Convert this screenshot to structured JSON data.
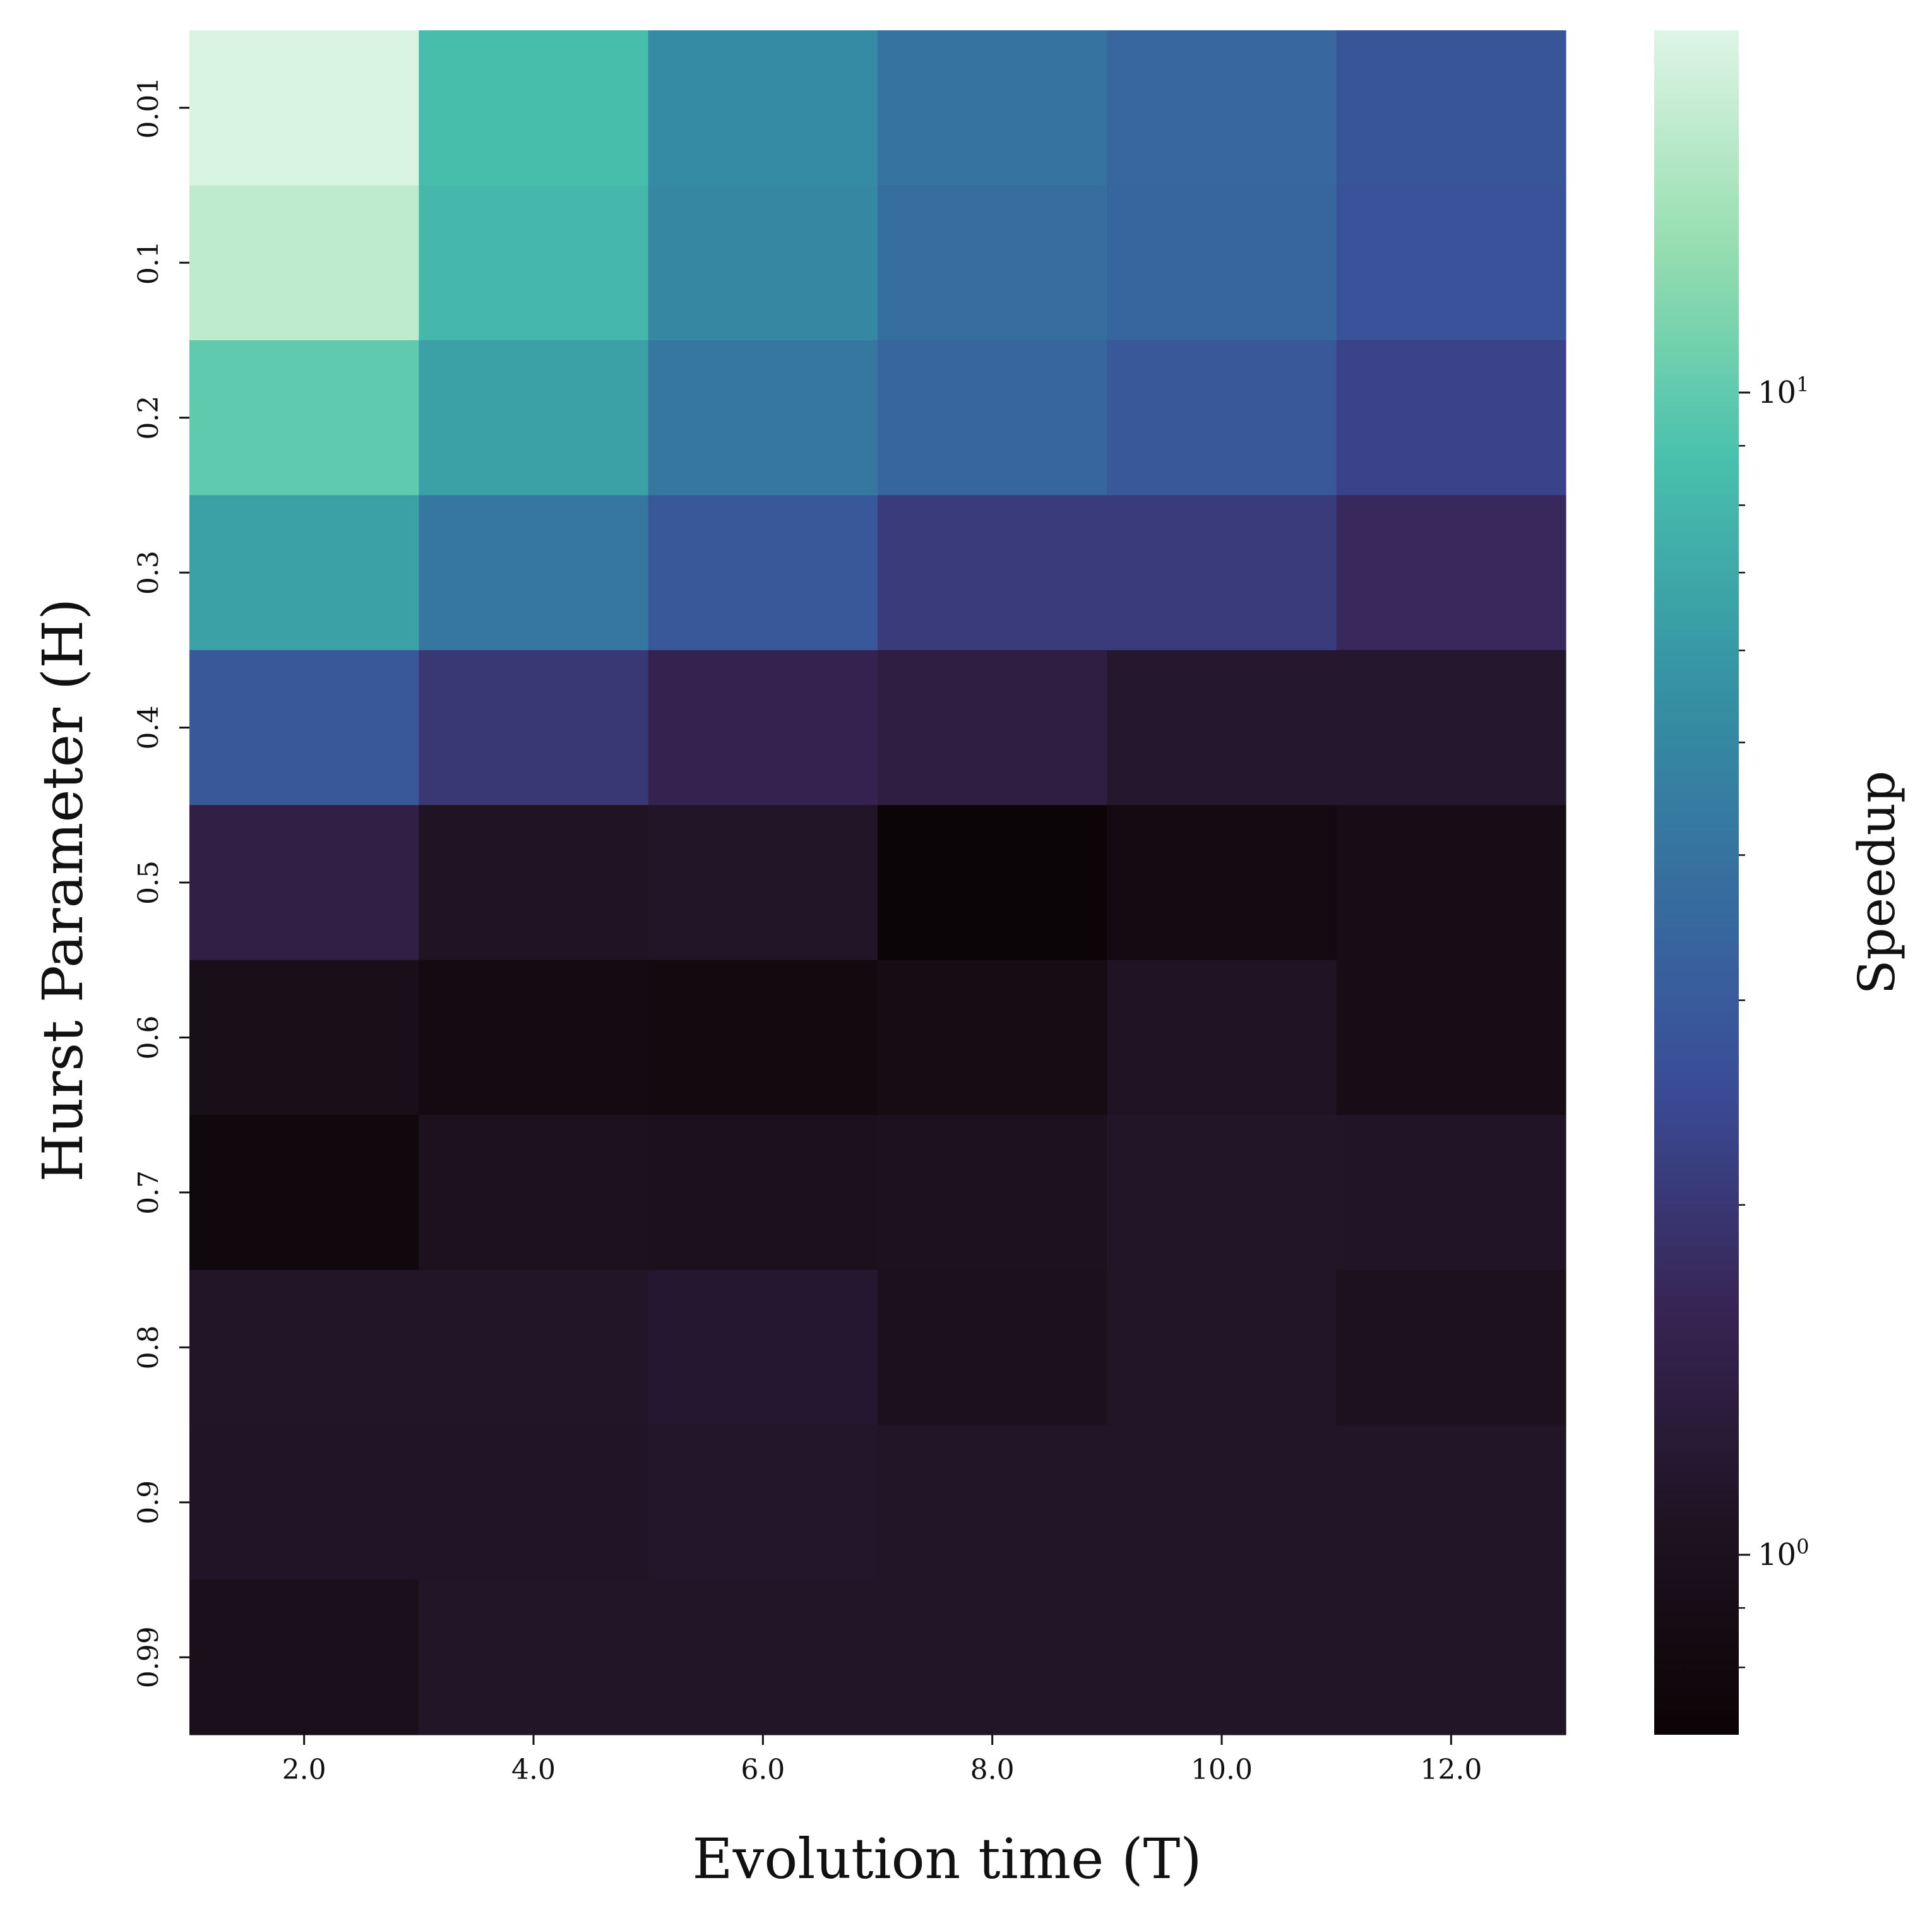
{
  "chart_data": {
    "type": "heatmap",
    "title": "",
    "xlabel": "Evolution time (T)",
    "ylabel": "Hurst Parameter (H)",
    "x_categories": [
      "2.0",
      "4.0",
      "6.0",
      "8.0",
      "10.0",
      "12.0"
    ],
    "y_categories": [
      "0.01",
      "0.1",
      "0.2",
      "0.3",
      "0.4",
      "0.5",
      "0.6",
      "0.7",
      "0.8",
      "0.9",
      "0.99"
    ],
    "values": [
      [
        20.0,
        8.5,
        5.2,
        4.0,
        3.5,
        2.8
      ],
      [
        17.0,
        8.0,
        5.0,
        3.8,
        3.4,
        2.7
      ],
      [
        10.0,
        6.5,
        4.2,
        3.4,
        2.9,
        2.3
      ],
      [
        6.5,
        4.2,
        2.9,
        2.1,
        2.1,
        1.7
      ],
      [
        2.9,
        2.0,
        1.55,
        1.4,
        1.18,
        1.18
      ],
      [
        1.45,
        1.08,
        1.12,
        0.72,
        0.85,
        0.9
      ],
      [
        0.95,
        0.85,
        0.83,
        0.88,
        1.08,
        0.92
      ],
      [
        0.78,
        1.02,
        1.0,
        1.03,
        1.12,
        1.1
      ],
      [
        1.12,
        1.12,
        1.2,
        1.0,
        1.12,
        1.02
      ],
      [
        1.1,
        1.1,
        1.14,
        1.12,
        1.12,
        1.12
      ],
      [
        0.97,
        1.12,
        1.12,
        1.12,
        1.12,
        1.12
      ]
    ],
    "colorbar": {
      "label": "Speedup",
      "scale": "log",
      "range": [
        0.7,
        20.5
      ],
      "major_ticks": [
        {
          "value": 1,
          "label": "10",
          "exponent": "0"
        },
        {
          "value": 10,
          "label": "10",
          "exponent": "1"
        }
      ],
      "minor_ticks": [
        0.8,
        0.9,
        2,
        3,
        4,
        5,
        6,
        7,
        8,
        9
      ],
      "colormap": "mako"
    }
  }
}
